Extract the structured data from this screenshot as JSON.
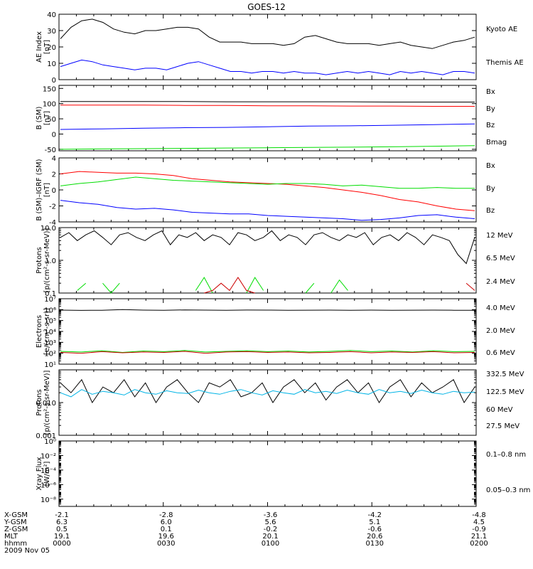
{
  "title": "GOES-12",
  "colors": {
    "black": "#000000",
    "blue": "#0000ff",
    "red": "#ff0000",
    "green": "#00dd00",
    "cyan": "#00b4e6",
    "gold": "#ffd400",
    "darkred": "#cc0000"
  },
  "chart_data": [
    {
      "type": "line",
      "ylabel": [
        "AE Index",
        "[nT]"
      ],
      "ylim": [
        0,
        40
      ],
      "yscale": "linear",
      "yticks": [
        0,
        10,
        20,
        30,
        40
      ],
      "ytick_labels": [
        "0",
        "10",
        "20",
        "30",
        "40"
      ],
      "legend": [
        {
          "name": "Kyoto AE",
          "color": "#0000ff"
        },
        {
          "name": "Themis AE",
          "color": "#000000"
        }
      ],
      "series": [
        {
          "color": "#000000",
          "values": [
            25,
            32,
            36,
            37,
            35,
            31,
            29,
            28,
            30,
            30,
            31,
            32,
            32,
            31,
            26,
            23,
            23,
            23,
            22,
            22,
            22,
            21,
            22,
            26,
            27,
            25,
            23,
            22,
            22,
            22,
            21,
            22,
            23,
            21,
            20,
            19,
            21,
            23,
            24,
            26
          ]
        },
        {
          "color": "#0000ff",
          "values": [
            8,
            10,
            12,
            11,
            9,
            8,
            7,
            6,
            7,
            7,
            6,
            8,
            10,
            11,
            9,
            7,
            5,
            5,
            4,
            5,
            5,
            4,
            5,
            4,
            4,
            3,
            4,
            5,
            4,
            5,
            4,
            3,
            5,
            4,
            5,
            4,
            3,
            5,
            5,
            4
          ]
        }
      ]
    },
    {
      "type": "line",
      "ylabel": [
        "B (SM)",
        "[nT]"
      ],
      "ylim": [
        -55,
        160
      ],
      "yscale": "linear",
      "yticks": [
        -50,
        0,
        50,
        100,
        150
      ],
      "ytick_labels": [
        "-50",
        "0",
        "50",
        "100",
        "150"
      ],
      "legend": [
        {
          "name": "Bx",
          "color": "#0000ff"
        },
        {
          "name": "By",
          "color": "#00dd00"
        },
        {
          "name": "Bz",
          "color": "#ff0000"
        },
        {
          "name": "Bmag",
          "color": "#000000"
        }
      ],
      "series": [
        {
          "color": "#000000",
          "values": [
            107,
            107,
            107,
            107,
            106,
            106,
            106,
            106,
            105,
            105,
            105
          ]
        },
        {
          "color": "#ff0000",
          "values": [
            95,
            95,
            95,
            94,
            94,
            93,
            93,
            92,
            92,
            91,
            91
          ]
        },
        {
          "color": "#0000ff",
          "values": [
            15,
            17,
            19,
            21,
            22,
            24,
            26,
            27,
            29,
            31,
            33
          ]
        },
        {
          "color": "#00dd00",
          "values": [
            -50,
            -49,
            -48,
            -47,
            -46,
            -45,
            -44,
            -43,
            -42,
            -40,
            -38
          ]
        }
      ]
    },
    {
      "type": "line",
      "ylabel": [
        "B (SM)–IGRF (SM)",
        "[nT]"
      ],
      "ylim": [
        -4,
        4
      ],
      "yscale": "linear",
      "yticks": [
        -4,
        -2,
        0,
        2,
        4
      ],
      "ytick_labels": [
        "-4",
        "-2",
        "0",
        "2",
        "4"
      ],
      "legend": [
        {
          "name": "Bx",
          "color": "#0000ff"
        },
        {
          "name": "By",
          "color": "#00dd00"
        },
        {
          "name": "Bz",
          "color": "#ff0000"
        }
      ],
      "series": [
        {
          "color": "#ff0000",
          "values": [
            2.0,
            2.3,
            2.2,
            2.1,
            2.1,
            2.0,
            1.8,
            1.4,
            1.2,
            1.0,
            0.9,
            0.8,
            0.7,
            0.5,
            0.3,
            0.0,
            -0.3,
            -0.7,
            -1.2,
            -1.5,
            -2.0,
            -2.4,
            -2.6
          ]
        },
        {
          "color": "#00dd00",
          "values": [
            0.5,
            0.8,
            1.0,
            1.3,
            1.6,
            1.4,
            1.2,
            1.1,
            1.0,
            0.9,
            0.8,
            0.7,
            0.8,
            0.8,
            0.7,
            0.5,
            0.6,
            0.4,
            0.2,
            0.2,
            0.3,
            0.2,
            0.2
          ]
        },
        {
          "color": "#0000ff",
          "values": [
            -1.3,
            -1.6,
            -1.8,
            -2.2,
            -2.4,
            -2.3,
            -2.5,
            -2.8,
            -2.9,
            -3.0,
            -3.0,
            -3.2,
            -3.3,
            -3.4,
            -3.5,
            -3.6,
            -3.8,
            -3.7,
            -3.5,
            -3.2,
            -3.1,
            -3.4,
            -3.6
          ]
        }
      ]
    },
    {
      "type": "line",
      "ylabel": [
        "Protons",
        "[p/(cm²-s-sr-MeV)]"
      ],
      "ylim": [
        0.1,
        10
      ],
      "yscale": "log",
      "yticks": [
        0.1,
        1,
        10
      ],
      "ytick_labels": [
        "0.1",
        "1.0",
        "10.0"
      ],
      "legend": [
        {
          "name": "12 MeV",
          "color": "#cc0000"
        },
        {
          "name": "6.5 MeV",
          "color": "#00dd00"
        },
        {
          "name": "2.4 MeV",
          "color": "#000000"
        }
      ],
      "series": [
        {
          "color": "#000000",
          "values": [
            5,
            7,
            4,
            6,
            8,
            5,
            3,
            6,
            7,
            5,
            4,
            6,
            8,
            3,
            6,
            5,
            7,
            4,
            6,
            5,
            3,
            7,
            6,
            4,
            5,
            8,
            4,
            6,
            5,
            3,
            6,
            7,
            5,
            4,
            6,
            5,
            7,
            3,
            5,
            6,
            4,
            7,
            5,
            3,
            6,
            5,
            4,
            1.5,
            0.8,
            5
          ]
        },
        {
          "color": "#00dd00",
          "values": [
            null,
            null,
            0.12,
            0.2,
            null,
            0.2,
            0.1,
            0.2,
            null,
            null,
            null,
            0.2,
            null,
            0.2,
            null,
            null,
            0.12,
            0.3,
            0.1,
            null,
            null,
            null,
            0.1,
            0.3,
            0.12,
            null,
            null,
            0.2,
            null,
            0.1,
            0.2,
            null,
            0.1,
            0.25,
            0.12,
            null,
            null,
            0.1,
            null,
            null,
            0.1,
            null,
            null,
            null,
            0.1,
            null,
            0.3,
            null,
            null,
            null
          ]
        },
        {
          "color": "#cc0000",
          "values": [
            null,
            null,
            null,
            null,
            null,
            null,
            null,
            0.2,
            null,
            null,
            null,
            null,
            null,
            null,
            null,
            null,
            null,
            0.1,
            0.12,
            0.2,
            0.12,
            0.3,
            0.12,
            0.1,
            null,
            null,
            null,
            null,
            null,
            null,
            null,
            null,
            null,
            null,
            null,
            null,
            null,
            null,
            null,
            null,
            null,
            null,
            null,
            null,
            null,
            null,
            null,
            null,
            0.2,
            0.12
          ]
        }
      ]
    },
    {
      "type": "line",
      "ylabel": [
        "Electrons",
        "[e/(cm²-s-sr)]"
      ],
      "ylim": [
        10,
        10000000
      ],
      "yscale": "log",
      "yticks": [
        10,
        100,
        1000,
        10000,
        100000,
        1000000,
        10000000
      ],
      "ytick_labels": [
        "10¹",
        "10²",
        "10³",
        "10⁴",
        "10⁵",
        "10⁶",
        "10⁷"
      ],
      "legend": [
        {
          "name": "4.0 MeV",
          "color": "#cc0000"
        },
        {
          "name": "2.0 MeV",
          "color": "#00dd00"
        },
        {
          "name": "0.6 MeV",
          "color": "#000000"
        }
      ],
      "series": [
        {
          "color": "#000000",
          "values": [
            900000,
            850000,
            880000,
            1000000,
            900000,
            870000,
            950000,
            900000,
            880000,
            920000,
            900000,
            870000,
            890000,
            910000,
            880000,
            900000,
            870000,
            890000,
            900000,
            880000,
            860000
          ]
        },
        {
          "color": "#00dd00",
          "values": [
            150,
            130,
            170,
            120,
            160,
            140,
            180,
            130,
            150,
            170,
            140,
            160,
            130,
            150,
            180,
            140,
            160,
            130,
            170,
            140,
            150
          ]
        },
        {
          "color": "#cc0000",
          "values": [
            120,
            100,
            140,
            110,
            130,
            120,
            150,
            100,
            130,
            140,
            120,
            130,
            110,
            120,
            140,
            110,
            130,
            120,
            140,
            110,
            120
          ]
        }
      ]
    },
    {
      "type": "line",
      "ylabel": [
        "Protons",
        "[p/(cm²-s-sr-MeV)]"
      ],
      "ylim": [
        0.001,
        0.1
      ],
      "yscale": "log",
      "yticks": [
        0.001,
        0.01
      ],
      "ytick_labels": [
        "0.001",
        "0.010"
      ],
      "legend": [
        {
          "name": "332.5 MeV",
          "color": "#cc0000"
        },
        {
          "name": "122.5 MeV",
          "color": "#ffd400"
        },
        {
          "name": "60 MeV",
          "color": "#00b4e6"
        },
        {
          "name": "27.5 MeV",
          "color": "#000000"
        }
      ],
      "series": [
        {
          "color": "#000000",
          "values": [
            0.04,
            0.02,
            0.05,
            0.01,
            0.03,
            0.02,
            0.05,
            0.015,
            0.04,
            0.01,
            0.03,
            0.05,
            0.02,
            0.01,
            0.04,
            0.03,
            0.05,
            0.015,
            0.02,
            0.04,
            0.01,
            0.03,
            0.05,
            0.02,
            0.04,
            0.012,
            0.03,
            0.05,
            0.02,
            0.04,
            0.01,
            0.03,
            0.05,
            0.015,
            0.04,
            0.02,
            0.03,
            0.05,
            0.01,
            0.03
          ]
        },
        {
          "color": "#00b4e6",
          "values": [
            0.02,
            0.015,
            0.025,
            0.018,
            0.022,
            0.02,
            0.017,
            0.025,
            0.02,
            0.018,
            0.023,
            0.02,
            0.019,
            0.024,
            0.02,
            0.018,
            0.022,
            0.025,
            0.02,
            0.017,
            0.023,
            0.02,
            0.018,
            0.025,
            0.02,
            0.022,
            0.019,
            0.024,
            0.02,
            0.018,
            0.025,
            0.02,
            0.022,
            0.019,
            0.024,
            0.02,
            0.018,
            0.022,
            0.02,
            0.021
          ]
        }
      ]
    },
    {
      "type": "line",
      "ylabel": [
        "Xray Flux",
        "[W/m²]"
      ],
      "ylim": [
        1e-09,
        1
      ],
      "yscale": "log",
      "yticks": [
        1e-08,
        1e-06,
        0.0001,
        0.01,
        1
      ],
      "ytick_labels": [
        "10⁻⁸",
        "10⁻⁶",
        "10⁻⁴",
        "10⁻²",
        "10⁰"
      ],
      "legend": [
        {
          "name": "0.1–0.8 nm",
          "color": "#cc0000"
        },
        {
          "name": "0.05–0.3 nm",
          "color": "#0000ff"
        }
      ],
      "series": []
    }
  ],
  "xaxis": {
    "ticks": 5,
    "rows": [
      {
        "label": "X-GSM",
        "values": [
          "-2.1",
          "-2.8",
          "-3.6",
          "-4.2",
          "-4.8"
        ]
      },
      {
        "label": "Y-GSM",
        "values": [
          "6.3",
          "6.0",
          "5.6",
          "5.1",
          "4.5"
        ]
      },
      {
        "label": "Z-GSM",
        "values": [
          "0.5",
          "0.1",
          "-0.2",
          "-0.6",
          "-0.9"
        ]
      },
      {
        "label": "MLT",
        "values": [
          "19.1",
          "19.6",
          "20.1",
          "20.6",
          "21.1"
        ]
      },
      {
        "label": "hhmm",
        "values": [
          "0000",
          "0030",
          "0100",
          "0130",
          "0200"
        ]
      }
    ],
    "date": "2009 Nov 05"
  }
}
